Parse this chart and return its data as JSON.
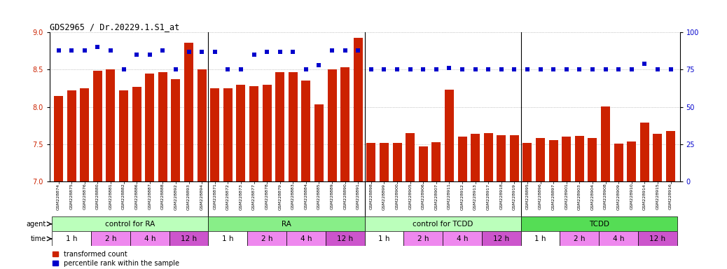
{
  "title": "GDS2965 / Dr.20229.1.S1_at",
  "samples": [
    "GSM228874",
    "GSM228875",
    "GSM228876",
    "GSM228880",
    "GSM228881",
    "GSM228882",
    "GSM228886",
    "GSM228887",
    "GSM228888",
    "GSM228892",
    "GSM228893",
    "GSM228894",
    "GSM228871",
    "GSM228872",
    "GSM228873",
    "GSM228877",
    "GSM228878",
    "GSM228879",
    "GSM228883",
    "GSM228884",
    "GSM228885",
    "GSM228889",
    "GSM228890",
    "GSM228891",
    "GSM228898",
    "GSM228899",
    "GSM228900",
    "GSM228905",
    "GSM228906",
    "GSM228907",
    "GSM228911",
    "GSM228912",
    "GSM228913",
    "GSM228917",
    "GSM228918",
    "GSM228919",
    "GSM228895",
    "GSM228896",
    "GSM228897",
    "GSM228901",
    "GSM228903",
    "GSM228904",
    "GSM228908",
    "GSM228909",
    "GSM228910",
    "GSM228914",
    "GSM228915",
    "GSM228916"
  ],
  "bar_values": [
    8.15,
    8.22,
    8.25,
    8.48,
    8.5,
    8.22,
    8.27,
    8.45,
    8.47,
    8.37,
    8.86,
    8.5,
    8.25,
    8.25,
    8.3,
    8.28,
    8.3,
    8.47,
    8.47,
    8.35,
    8.03,
    8.5,
    8.53,
    8.93,
    7.52,
    7.52,
    7.52,
    7.65,
    7.47,
    7.53,
    8.23,
    7.6,
    7.64,
    7.65,
    7.62,
    7.62,
    7.52,
    7.58,
    7.56,
    7.6,
    7.61,
    7.58,
    8.01,
    7.51,
    7.54,
    7.79,
    7.64,
    7.68
  ],
  "percentile_values": [
    88,
    88,
    88,
    90,
    88,
    75,
    85,
    85,
    88,
    75,
    87,
    87,
    87,
    75,
    75,
    85,
    87,
    87,
    87,
    75,
    78,
    88,
    88,
    88,
    75,
    75,
    75,
    75,
    75,
    75,
    76,
    75,
    75,
    75,
    75,
    75,
    75,
    75,
    75,
    75,
    75,
    75,
    75,
    75,
    75,
    79,
    75,
    75
  ],
  "ylim_left": [
    7.0,
    9.0
  ],
  "ylim_right": [
    0,
    100
  ],
  "yticks_left": [
    7.0,
    7.5,
    8.0,
    8.5,
    9.0
  ],
  "yticks_right": [
    0,
    25,
    50,
    75,
    100
  ],
  "bar_color": "#cc2200",
  "dot_color": "#0000cc",
  "agent_groups": [
    {
      "label": "control for RA",
      "start": 0,
      "end": 11,
      "color": "#bbffbb"
    },
    {
      "label": "RA",
      "start": 12,
      "end": 23,
      "color": "#88ee88"
    },
    {
      "label": "control for TCDD",
      "start": 24,
      "end": 35,
      "color": "#bbffbb"
    },
    {
      "label": "TCDD",
      "start": 36,
      "end": 47,
      "color": "#55dd55"
    }
  ],
  "time_groups": [
    {
      "label": "1 h",
      "start": 0,
      "end": 2,
      "color": "#ffffff"
    },
    {
      "label": "2 h",
      "start": 3,
      "end": 5,
      "color": "#ee88ee"
    },
    {
      "label": "4 h",
      "start": 6,
      "end": 8,
      "color": "#ee88ee"
    },
    {
      "label": "12 h",
      "start": 9,
      "end": 11,
      "color": "#cc55cc"
    },
    {
      "label": "1 h",
      "start": 12,
      "end": 14,
      "color": "#ffffff"
    },
    {
      "label": "2 h",
      "start": 15,
      "end": 17,
      "color": "#ee88ee"
    },
    {
      "label": "4 h",
      "start": 18,
      "end": 20,
      "color": "#ee88ee"
    },
    {
      "label": "12 h",
      "start": 21,
      "end": 23,
      "color": "#cc55cc"
    },
    {
      "label": "1 h",
      "start": 24,
      "end": 26,
      "color": "#ffffff"
    },
    {
      "label": "2 h",
      "start": 27,
      "end": 29,
      "color": "#ee88ee"
    },
    {
      "label": "4 h",
      "start": 30,
      "end": 32,
      "color": "#ee88ee"
    },
    {
      "label": "12 h",
      "start": 33,
      "end": 35,
      "color": "#cc55cc"
    },
    {
      "label": "1 h",
      "start": 36,
      "end": 38,
      "color": "#ffffff"
    },
    {
      "label": "2 h",
      "start": 39,
      "end": 41,
      "color": "#ee88ee"
    },
    {
      "label": "4 h",
      "start": 42,
      "end": 44,
      "color": "#ee88ee"
    },
    {
      "label": "12 h",
      "start": 45,
      "end": 47,
      "color": "#cc55cc"
    }
  ],
  "agent_label": "agent",
  "time_label": "time",
  "legend_bar": "transformed count",
  "legend_dot": "percentile rank within the sample",
  "bg_color": "#ffffff",
  "grid_color": "#999999",
  "label_area_color": "#dddddd"
}
